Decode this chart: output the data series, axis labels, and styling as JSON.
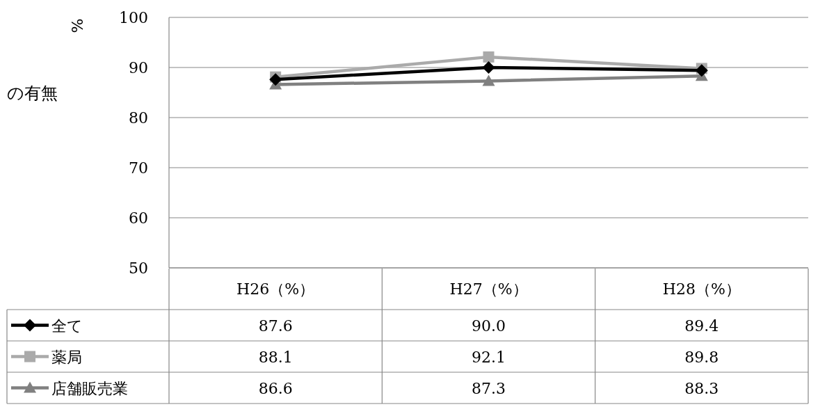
{
  "chart_data": {
    "type": "line",
    "title": "の有無",
    "ylabel": "%",
    "categories": [
      "H26（%）",
      "H27（%）",
      "H28（%）"
    ],
    "series": [
      {
        "name": "全て",
        "color": "#000000",
        "marker": "diamond",
        "values": [
          87.6,
          90.0,
          89.4
        ],
        "value_labels": [
          "87.6",
          "90.0",
          "89.4"
        ]
      },
      {
        "name": "薬局",
        "color": "#aaaaaa",
        "marker": "square",
        "values": [
          88.1,
          92.1,
          89.8
        ],
        "value_labels": [
          "88.1",
          "92.1",
          "89.8"
        ]
      },
      {
        "name": "店舗販売業",
        "color": "#808080",
        "marker": "triangle",
        "values": [
          86.6,
          87.3,
          88.3
        ],
        "value_labels": [
          "86.6",
          "87.3",
          "88.3"
        ]
      }
    ],
    "ylim": [
      50,
      100
    ],
    "yticks": [
      50,
      60,
      70,
      80,
      90,
      100
    ],
    "grid": "y",
    "legend": "bottom"
  }
}
